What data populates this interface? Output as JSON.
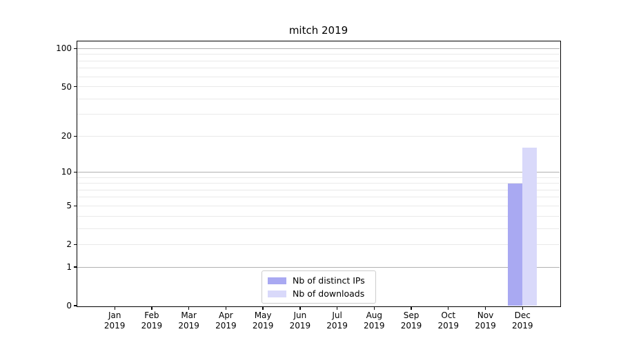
{
  "chart_data": {
    "type": "bar",
    "title": "mitch 2019",
    "categories": [
      "Jan",
      "Feb",
      "Mar",
      "Apr",
      "May",
      "Jun",
      "Jul",
      "Aug",
      "Sep",
      "Oct",
      "Nov",
      "Dec"
    ],
    "year_label": "2019",
    "series": [
      {
        "name": "Nb of distinct IPs",
        "color": "#a9a9f2",
        "values": [
          0,
          0,
          0,
          0,
          0,
          0,
          0,
          0,
          0,
          0,
          0,
          8
        ]
      },
      {
        "name": "Nb of downloads",
        "color": "#d9d9fa",
        "values": [
          0,
          0,
          0,
          0,
          0,
          0,
          0,
          0,
          0,
          0,
          0,
          16
        ]
      }
    ],
    "yticks": [
      0,
      1,
      2,
      5,
      10,
      20,
      50,
      100
    ],
    "y_scale": "log1p",
    "ylim": [
      0,
      114
    ],
    "grid": {
      "major_values": [
        1,
        10,
        100
      ],
      "minor_values": [
        2,
        3,
        4,
        5,
        6,
        7,
        8,
        9,
        20,
        30,
        40,
        50,
        60,
        70,
        80,
        90
      ],
      "major_color": "#b0b0b0",
      "minor_color": "#e9e9e9"
    },
    "legend_position": "lower center",
    "background_color": "#ffffff"
  }
}
